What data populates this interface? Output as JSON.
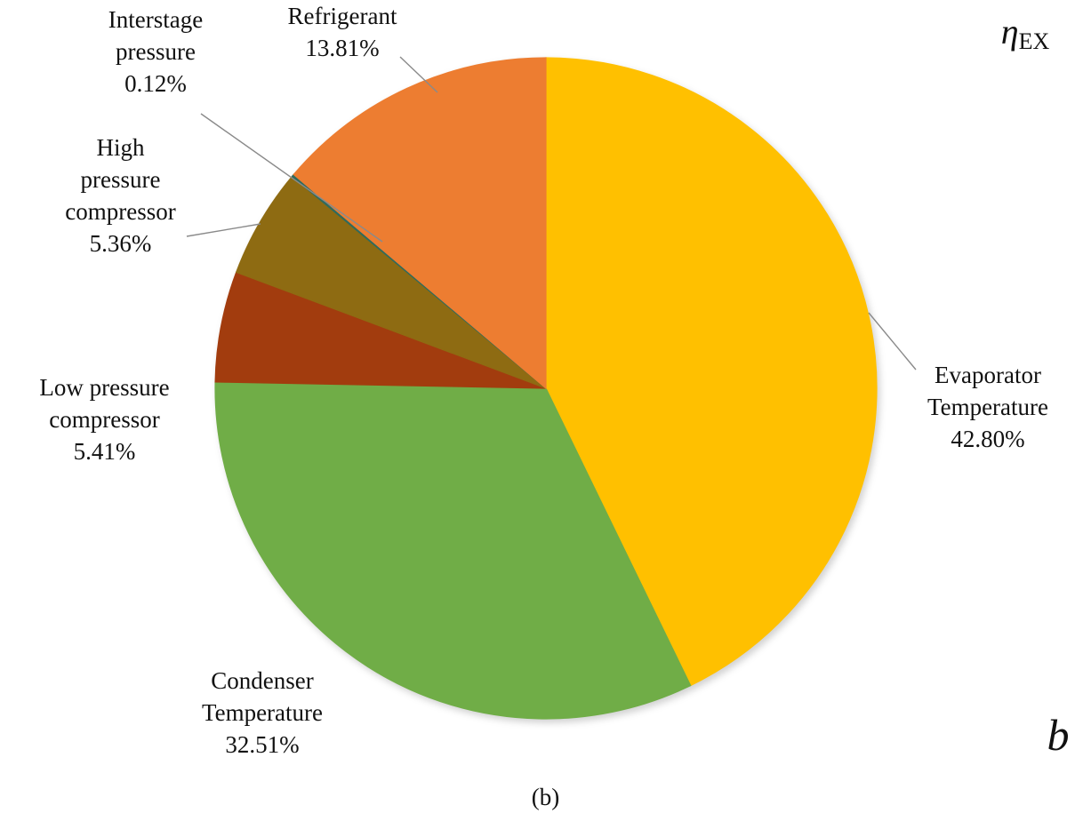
{
  "figure": {
    "title_symbol": "η",
    "title_subscript": "EX",
    "panel_letter": "b",
    "caption": "(b)"
  },
  "chart_data": {
    "type": "pie",
    "title": "ηEX",
    "direction": "clockwise",
    "start_angle_deg": 0,
    "legend_position": "none",
    "slices": [
      {
        "label": "Evaporator Temperature",
        "value": 42.8,
        "display": "42.80%",
        "color": "#FFC000"
      },
      {
        "label": "Condenser Temperature",
        "value": 32.51,
        "display": "32.51%",
        "color": "#70AD47"
      },
      {
        "label": "Low pressure compressor",
        "value": 5.41,
        "display": "5.41%",
        "color": "#A23C0E"
      },
      {
        "label": "High pressure compressor",
        "value": 5.36,
        "display": "5.36%",
        "color": "#8E6B12"
      },
      {
        "label": "Interstage pressure",
        "value": 0.12,
        "display": "0.12%",
        "color": "#2E6B5E"
      },
      {
        "label": "Refrigerant",
        "value": 13.81,
        "display": "13.81%",
        "color": "#ED7D31"
      }
    ]
  },
  "labels": {
    "interstage": {
      "lines": [
        "Interstage",
        "pressure",
        "0.12%"
      ]
    },
    "refrigerant": {
      "lines": [
        "Refrigerant",
        "13.81%"
      ]
    },
    "high_pressure": {
      "lines": [
        "High",
        "pressure",
        "compressor",
        "5.36%"
      ]
    },
    "low_pressure": {
      "lines": [
        "Low pressure",
        "compressor",
        "5.41%"
      ]
    },
    "condenser": {
      "lines": [
        "Condenser",
        "Temperature",
        "32.51%"
      ]
    },
    "evaporator": {
      "lines": [
        "Evaporator",
        "Temperature",
        "42.80%"
      ]
    }
  }
}
